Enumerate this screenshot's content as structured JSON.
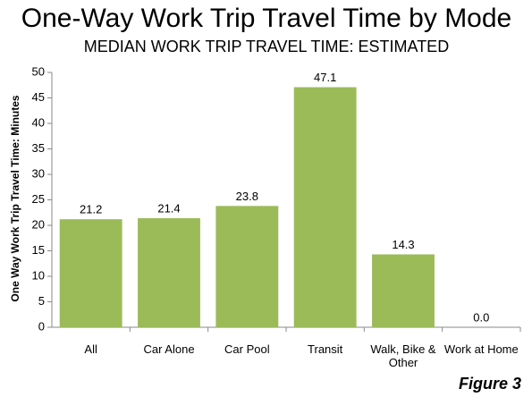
{
  "chart_data": {
    "type": "bar",
    "title": "One-Way Work Trip Travel Time by Mode",
    "subtitle": "MEDIAN WORK TRIP TRAVEL TIME: ESTIMATED",
    "y_label": "One Way Work Trip Travel Time: Minutes",
    "categories": [
      "All",
      "Car Alone",
      "Car Pool",
      "Transit",
      "Walk, Bike & Other",
      "Work at Home"
    ],
    "values": [
      21.2,
      21.4,
      23.8,
      47.1,
      14.3,
      0
    ],
    "value_labels": [
      "21.2",
      "21.4",
      "23.8",
      "47.1",
      "14.3",
      "0.0"
    ],
    "color": "#9bbb59",
    "ylim": [
      0,
      50
    ],
    "yticks": [
      0,
      5,
      10,
      15,
      20,
      25,
      30,
      35,
      40,
      45,
      50
    ],
    "grid": false,
    "annotation": "Figure 3"
  }
}
